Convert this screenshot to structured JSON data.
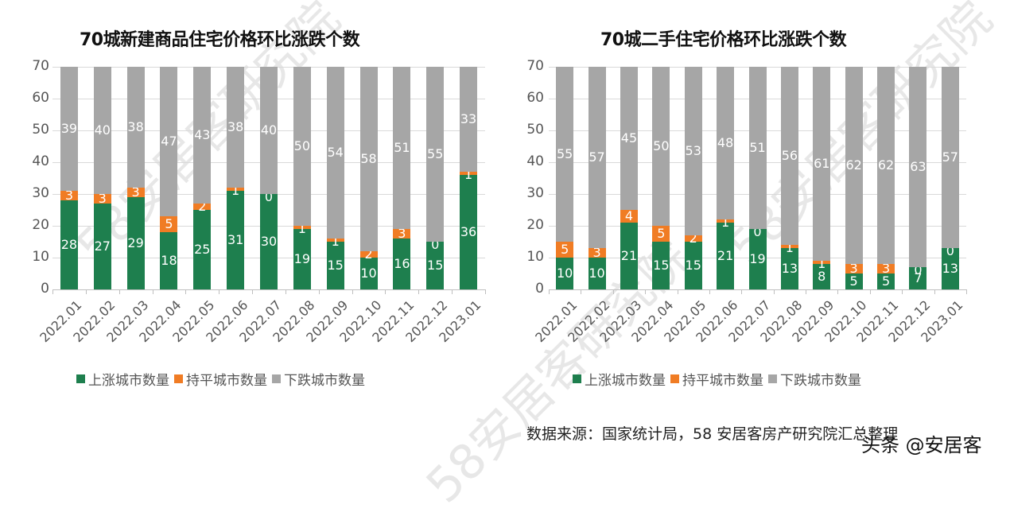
{
  "colors": {
    "rise": "#1e7f4e",
    "flat": "#f07c24",
    "fall": "#a6a6a6"
  },
  "legend": [
    "上涨城市数量",
    "持平城市数量",
    "下跌城市数量"
  ],
  "source_text": "数据来源：国家统计局，58 安居客房产研究院汇总整理",
  "brand_text": "头条 @安居客",
  "watermark": "58安居客研究院",
  "chart_data": [
    {
      "type": "bar",
      "stacked": true,
      "title": "70城新建商品住宅价格环比涨跌个数",
      "xlabel": "",
      "ylabel": "",
      "ylim": [
        0,
        70
      ],
      "yticks": [
        0,
        10,
        20,
        30,
        40,
        50,
        60,
        70
      ],
      "grid": true,
      "legend_position": "bottom",
      "categories": [
        "2022.01",
        "2022.02",
        "2022.03",
        "2022.04",
        "2022.05",
        "2022.06",
        "2022.07",
        "2022.08",
        "2022.09",
        "2022.10",
        "2022.11",
        "2022.12",
        "2023.01"
      ],
      "series": [
        {
          "name": "上涨城市数量",
          "values": [
            28,
            27,
            29,
            18,
            25,
            31,
            30,
            19,
            15,
            10,
            16,
            15,
            36
          ]
        },
        {
          "name": "持平城市数量",
          "values": [
            3,
            3,
            3,
            5,
            2,
            1,
            0,
            1,
            1,
            2,
            3,
            0,
            1
          ]
        },
        {
          "name": "下跌城市数量",
          "values": [
            39,
            40,
            38,
            47,
            43,
            38,
            40,
            50,
            54,
            58,
            51,
            55,
            33
          ]
        }
      ]
    },
    {
      "type": "bar",
      "stacked": true,
      "title": "70城二手住宅价格环比涨跌个数",
      "xlabel": "",
      "ylabel": "",
      "ylim": [
        0,
        70
      ],
      "yticks": [
        0,
        10,
        20,
        30,
        40,
        50,
        60,
        70
      ],
      "grid": true,
      "legend_position": "bottom",
      "categories": [
        "2022.01",
        "2022.02",
        "2022.03",
        "2022.04",
        "2022.05",
        "2022.06",
        "2022.07",
        "2022.08",
        "2022.09",
        "2022.10",
        "2022.11",
        "2022.12",
        "2023.01"
      ],
      "series": [
        {
          "name": "上涨城市数量",
          "values": [
            10,
            10,
            21,
            15,
            15,
            21,
            19,
            13,
            8,
            5,
            5,
            7,
            13
          ]
        },
        {
          "name": "持平城市数量",
          "values": [
            5,
            3,
            4,
            5,
            2,
            1,
            0,
            1,
            1,
            3,
            3,
            0,
            0
          ]
        },
        {
          "name": "下跌城市数量",
          "values": [
            55,
            57,
            45,
            50,
            53,
            48,
            51,
            56,
            61,
            62,
            62,
            63,
            57
          ]
        }
      ]
    }
  ]
}
